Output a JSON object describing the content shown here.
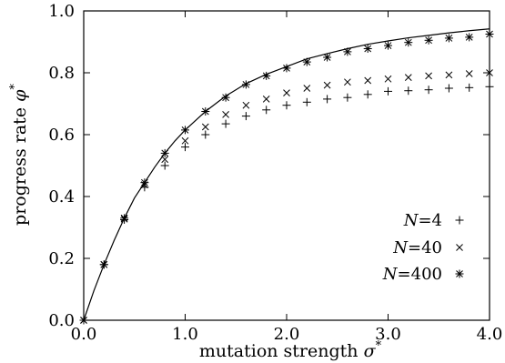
{
  "chart_data": {
    "type": "scatter",
    "xlabel": "mutation strength",
    "xlabel_symbol": "σ",
    "xlabel_sup": "*",
    "ylabel": "progress rate",
    "ylabel_symbol": "φ",
    "ylabel_sup": "*",
    "xlim": [
      0.0,
      4.0
    ],
    "ylim": [
      0.0,
      1.0
    ],
    "grid": false,
    "legend_position": "bottom-right",
    "x_ticks": [
      0.0,
      1.0,
      2.0,
      3.0,
      4.0
    ],
    "x_tick_labels": [
      "0.0",
      "1.0",
      "2.0",
      "3.0",
      "4.0"
    ],
    "y_ticks": [
      0.0,
      0.2,
      0.4,
      0.6,
      0.8,
      1.0
    ],
    "y_tick_labels": [
      "0.0",
      "0.2",
      "0.4",
      "0.6",
      "0.8",
      "1.0"
    ],
    "curve": {
      "style": "solid line",
      "x": [
        0.0,
        0.1,
        0.2,
        0.3,
        0.4,
        0.5,
        0.6,
        0.7,
        0.8,
        0.9,
        1.0,
        1.2,
        1.4,
        1.6,
        1.8,
        2.0,
        2.2,
        2.4,
        2.6,
        2.8,
        3.0,
        3.2,
        3.4,
        3.6,
        3.8,
        4.0
      ],
      "y": [
        0.0,
        0.095,
        0.18,
        0.258,
        0.33,
        0.395,
        0.445,
        0.495,
        0.54,
        0.58,
        0.615,
        0.675,
        0.725,
        0.765,
        0.795,
        0.82,
        0.845,
        0.862,
        0.878,
        0.892,
        0.903,
        0.913,
        0.921,
        0.929,
        0.936,
        0.942
      ]
    },
    "x": [
      0.0,
      0.2,
      0.4,
      0.6,
      0.8,
      1.0,
      1.2,
      1.4,
      1.6,
      1.8,
      2.0,
      2.2,
      2.4,
      2.6,
      2.8,
      3.0,
      3.2,
      3.4,
      3.6,
      3.8,
      4.0
    ],
    "series": [
      {
        "name_var": "N",
        "name_value": "=4",
        "marker": "plus",
        "values": [
          0.0,
          0.18,
          0.325,
          0.43,
          0.5,
          0.56,
          0.6,
          0.635,
          0.66,
          0.68,
          0.695,
          0.705,
          0.715,
          0.72,
          0.73,
          0.74,
          0.742,
          0.745,
          0.75,
          0.752,
          0.755
        ]
      },
      {
        "name_var": "N",
        "name_value": "=40",
        "marker": "cross",
        "values": [
          0.0,
          0.18,
          0.327,
          0.438,
          0.52,
          0.58,
          0.625,
          0.665,
          0.695,
          0.715,
          0.735,
          0.75,
          0.76,
          0.77,
          0.775,
          0.78,
          0.785,
          0.79,
          0.793,
          0.797,
          0.8
        ]
      },
      {
        "name_var": "N",
        "name_value": "=400",
        "marker": "asterisk",
        "values": [
          0.0,
          0.18,
          0.33,
          0.445,
          0.54,
          0.615,
          0.675,
          0.72,
          0.762,
          0.79,
          0.815,
          0.835,
          0.85,
          0.868,
          0.878,
          0.888,
          0.898,
          0.905,
          0.912,
          0.915,
          0.925
        ]
      }
    ]
  }
}
